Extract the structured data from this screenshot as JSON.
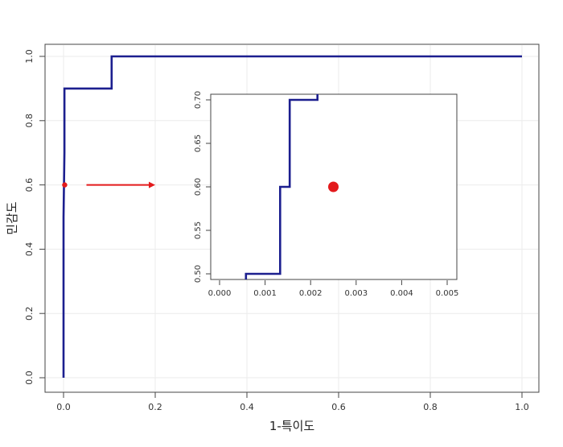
{
  "chart_data": [
    {
      "type": "line",
      "role": "main",
      "xlabel": "1-특이도",
      "ylabel": "민감도",
      "xlim": [
        0,
        1
      ],
      "ylim": [
        0,
        1
      ],
      "x_ticks": [
        "0.0",
        "0.2",
        "0.4",
        "0.6",
        "0.8",
        "1.0"
      ],
      "y_ticks": [
        "0.0",
        "0.2",
        "0.4",
        "0.6",
        "0.8",
        "1.0"
      ],
      "grid": true,
      "series": [
        {
          "color": "#1c1f8f",
          "step": true,
          "x": [
            0,
            0,
            0.002,
            0.002,
            0.105,
            0.105,
            1.0
          ],
          "y": [
            0,
            0.5,
            0.7,
            0.9,
            0.9,
            1.0,
            1.0
          ]
        }
      ],
      "point": {
        "x": 0.0025,
        "y": 0.6,
        "color": "#e31a1c"
      },
      "arrow": {
        "from": [
          0.05,
          0.6
        ],
        "to": [
          0.2,
          0.6
        ],
        "color": "#e31a1c"
      }
    },
    {
      "type": "line",
      "role": "inset",
      "xlim": [
        0,
        0.005
      ],
      "ylim": [
        0.5,
        0.7
      ],
      "x_ticks": [
        "0.000",
        "0.001",
        "0.002",
        "0.003",
        "0.004",
        "0.005"
      ],
      "y_ticks": [
        "0.50",
        "0.55",
        "0.60",
        "0.65",
        "0.70"
      ],
      "grid": false,
      "series": [
        {
          "color": "#1c1f8f",
          "step": true,
          "x": [
            0.00058,
            0.00058,
            0.00133,
            0.00133,
            0.00154,
            0.00154,
            0.00215,
            0.00215
          ],
          "y": [
            0.49,
            0.5,
            0.5,
            0.6,
            0.6,
            0.7,
            0.7,
            0.71
          ]
        }
      ],
      "point": {
        "x": 0.0025,
        "y": 0.6,
        "color": "#e31a1c"
      }
    }
  ]
}
